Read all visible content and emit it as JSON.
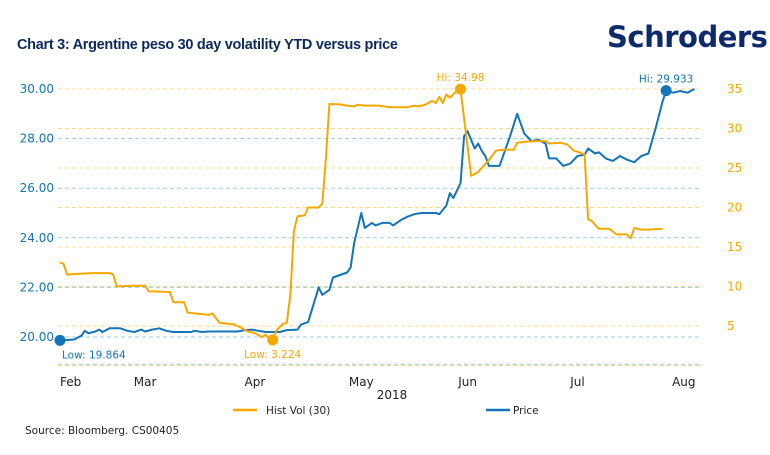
{
  "header": {
    "title": "Chart 3: Argentine peso 30 day volatility YTD versus price",
    "logo": "Schroders"
  },
  "footer": {
    "source": "Source: Bloomberg. CS00405"
  },
  "colors": {
    "price": "#1474b8",
    "vol": "#f5a800",
    "text": "#222222",
    "title": "#0d2a5c"
  },
  "chart_data": {
    "type": "line",
    "title": "Chart 3: Argentine peso 30 day volatility YTD versus price",
    "xlabel": "2018",
    "x_ticks": [
      {
        "label": "Feb",
        "day": 3
      },
      {
        "label": "Mar",
        "day": 24
      },
      {
        "label": "Apr",
        "day": 55
      },
      {
        "label": "May",
        "day": 85
      },
      {
        "label": "Jun",
        "day": 115
      },
      {
        "label": "Jul",
        "day": 146
      },
      {
        "label": "Aug",
        "day": 176
      }
    ],
    "x_range_days": [
      0,
      180
    ],
    "y_left": {
      "label": "Price",
      "ticks": [
        "20.00",
        "22.00",
        "24.00",
        "26.00",
        "28.00",
        "30.00"
      ],
      "range": [
        19.0,
        30.0
      ]
    },
    "y_right": {
      "label": "Hist Vol (30)",
      "ticks": [
        "5",
        "10",
        "15",
        "20",
        "25",
        "30",
        "35"
      ],
      "range": [
        0,
        35
      ]
    },
    "legend": {
      "placement": "bottom",
      "entries": [
        "Hist Vol (30)",
        "Price"
      ]
    },
    "grid": true,
    "series": [
      {
        "name": "Price",
        "axis": "left",
        "points": [
          [
            0,
            19.86
          ],
          [
            4,
            19.9
          ],
          [
            6,
            20.05
          ],
          [
            7,
            20.25
          ],
          [
            8,
            20.15
          ],
          [
            10,
            20.22
          ],
          [
            11,
            20.3
          ],
          [
            12,
            20.2
          ],
          [
            14,
            20.35
          ],
          [
            17,
            20.35
          ],
          [
            19,
            20.25
          ],
          [
            21,
            20.2
          ],
          [
            23,
            20.3
          ],
          [
            24,
            20.22
          ],
          [
            26,
            20.3
          ],
          [
            28,
            20.35
          ],
          [
            30,
            20.25
          ],
          [
            32,
            20.2
          ],
          [
            34,
            20.2
          ],
          [
            37,
            20.2
          ],
          [
            38,
            20.25
          ],
          [
            40,
            20.2
          ],
          [
            42,
            20.22
          ],
          [
            50,
            20.22
          ],
          [
            52,
            20.27
          ],
          [
            54,
            20.3
          ],
          [
            56,
            20.25
          ],
          [
            58,
            20.2
          ],
          [
            62,
            20.2
          ],
          [
            64,
            20.28
          ],
          [
            67,
            20.3
          ],
          [
            68,
            20.5
          ],
          [
            70,
            20.6
          ],
          [
            73,
            22.0
          ],
          [
            74,
            21.7
          ],
          [
            76,
            21.9
          ],
          [
            77,
            22.4
          ],
          [
            79,
            22.5
          ],
          [
            81,
            22.6
          ],
          [
            82,
            22.8
          ],
          [
            83,
            23.8
          ],
          [
            85,
            25.0
          ],
          [
            86,
            24.4
          ],
          [
            88,
            24.6
          ],
          [
            89,
            24.5
          ],
          [
            91,
            24.6
          ],
          [
            93,
            24.6
          ],
          [
            94,
            24.5
          ],
          [
            96,
            24.7
          ],
          [
            98,
            24.85
          ],
          [
            100,
            24.95
          ],
          [
            102,
            25.0
          ],
          [
            104,
            25.0
          ],
          [
            106,
            25.0
          ],
          [
            107,
            24.95
          ],
          [
            109,
            25.3
          ],
          [
            110,
            25.8
          ],
          [
            111,
            25.6
          ],
          [
            113,
            26.2
          ],
          [
            114,
            28.1
          ],
          [
            115,
            28.3
          ],
          [
            117,
            27.6
          ],
          [
            118,
            27.8
          ],
          [
            119,
            27.5
          ],
          [
            120,
            27.3
          ],
          [
            121,
            26.9
          ],
          [
            124,
            26.9
          ],
          [
            127,
            28.1
          ],
          [
            129,
            29.0
          ],
          [
            131,
            28.2
          ],
          [
            133,
            27.9
          ],
          [
            135,
            27.95
          ],
          [
            137,
            27.8
          ],
          [
            138,
            27.2
          ],
          [
            140,
            27.2
          ],
          [
            142,
            26.9
          ],
          [
            144,
            27.0
          ],
          [
            146,
            27.3
          ],
          [
            148,
            27.35
          ],
          [
            149,
            27.6
          ],
          [
            151,
            27.4
          ],
          [
            152,
            27.45
          ],
          [
            154,
            27.2
          ],
          [
            156,
            27.1
          ],
          [
            158,
            27.3
          ],
          [
            160,
            27.15
          ],
          [
            162,
            27.05
          ],
          [
            164,
            27.3
          ],
          [
            166,
            27.4
          ],
          [
            168,
            28.4
          ],
          [
            170,
            29.5
          ],
          [
            171,
            29.93
          ],
          [
            173,
            29.85
          ],
          [
            175,
            29.92
          ],
          [
            177,
            29.85
          ],
          [
            179,
            30.0
          ]
        ]
      },
      {
        "name": "Hist Vol (30)",
        "axis": "right",
        "points": [
          [
            0,
            13.0
          ],
          [
            1,
            12.9
          ],
          [
            2,
            11.5
          ],
          [
            5,
            11.6
          ],
          [
            9,
            11.7
          ],
          [
            14,
            11.7
          ],
          [
            15,
            11.5
          ],
          [
            16,
            10.0
          ],
          [
            20,
            10.1
          ],
          [
            24,
            10.1
          ],
          [
            25,
            9.4
          ],
          [
            31,
            9.3
          ],
          [
            32,
            8.0
          ],
          [
            35,
            8.0
          ],
          [
            36,
            6.7
          ],
          [
            40,
            6.5
          ],
          [
            42,
            6.4
          ],
          [
            43,
            6.6
          ],
          [
            45,
            5.4
          ],
          [
            49,
            5.2
          ],
          [
            51,
            4.8
          ],
          [
            53,
            4.3
          ],
          [
            55,
            4.1
          ],
          [
            57,
            3.6
          ],
          [
            58,
            3.9
          ],
          [
            59,
            3.4
          ],
          [
            60,
            3.22
          ],
          [
            61,
            4.4
          ],
          [
            63,
            5.3
          ],
          [
            64,
            5.4
          ],
          [
            65,
            9.0
          ],
          [
            66,
            17.0
          ],
          [
            67,
            18.9
          ],
          [
            69,
            19.0
          ],
          [
            70,
            20.0
          ],
          [
            73,
            20.0
          ],
          [
            74,
            20.5
          ],
          [
            75,
            26.0
          ],
          [
            76,
            33.1
          ],
          [
            79,
            33.05
          ],
          [
            81,
            32.9
          ],
          [
            83,
            32.8
          ],
          [
            84,
            33.0
          ],
          [
            86,
            32.9
          ],
          [
            90,
            32.9
          ],
          [
            93,
            32.7
          ],
          [
            95,
            32.7
          ],
          [
            98,
            32.7
          ],
          [
            100,
            32.9
          ],
          [
            101,
            32.8
          ],
          [
            103,
            33.0
          ],
          [
            105,
            33.5
          ],
          [
            106,
            33.2
          ],
          [
            107,
            34.0
          ],
          [
            108,
            33.2
          ],
          [
            109,
            34.3
          ],
          [
            110,
            33.9
          ],
          [
            112,
            34.8
          ],
          [
            113,
            34.98
          ],
          [
            116,
            24.0
          ],
          [
            118,
            24.5
          ],
          [
            121,
            26.0
          ],
          [
            123,
            27.2
          ],
          [
            125,
            27.3
          ],
          [
            128,
            27.3
          ],
          [
            129,
            28.2
          ],
          [
            131,
            28.3
          ],
          [
            134,
            28.4
          ],
          [
            137,
            28.4
          ],
          [
            138,
            28.1
          ],
          [
            141,
            28.2
          ],
          [
            143,
            28.0
          ],
          [
            145,
            27.2
          ],
          [
            147,
            26.9
          ],
          [
            148,
            26.7
          ],
          [
            149,
            18.5
          ],
          [
            150,
            18.3
          ],
          [
            152,
            17.3
          ],
          [
            155,
            17.3
          ],
          [
            157,
            16.6
          ],
          [
            160,
            16.6
          ],
          [
            161,
            16.1
          ],
          [
            162,
            17.4
          ],
          [
            164,
            17.2
          ],
          [
            166,
            17.2
          ],
          [
            170,
            17.3
          ]
        ]
      }
    ],
    "annotations": [
      {
        "text": "Hi: 34.98",
        "series": "Hist Vol (30)",
        "day": 113,
        "value": 34.98
      },
      {
        "text": "Hi: 29.933",
        "series": "Price",
        "day": 171,
        "value": 29.933
      },
      {
        "text": "Low: 19.864",
        "series": "Price",
        "day": 0,
        "value": 19.864
      },
      {
        "text": "Low: 3.224",
        "series": "Hist Vol (30)",
        "day": 60,
        "value": 3.224
      }
    ]
  }
}
